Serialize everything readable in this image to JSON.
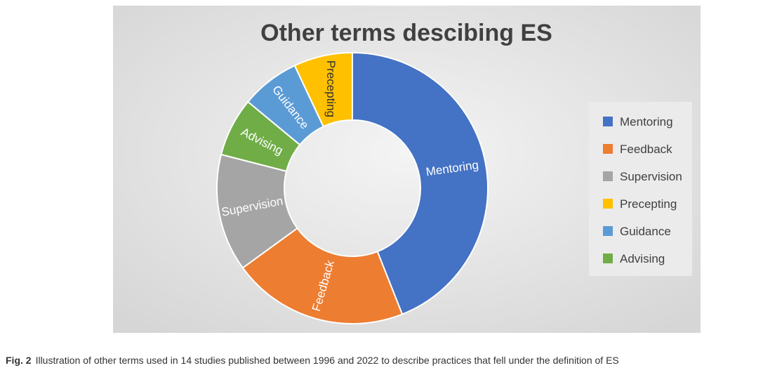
{
  "figure": {
    "caption_label": "Fig. 2",
    "caption_text": "Illustration of other terms used in 14 studies published between 1996 and 2022 to describe practices that fell under the definition of ES"
  },
  "chart_data": {
    "type": "pie",
    "variant": "donut",
    "title": "Other  terms descibing ES",
    "categories": [
      "Mentoring",
      "Feedback",
      "Supervision",
      "Precepting",
      "Guidance",
      "Advising"
    ],
    "values": [
      44,
      21,
      14,
      7,
      7,
      7
    ],
    "colors": [
      "#4472C4",
      "#ED7D31",
      "#A5A5A5",
      "#FFC000",
      "#5B9BD5",
      "#70AD47"
    ],
    "drawing_order": [
      "Mentoring",
      "Feedback",
      "Supervision",
      "Advising",
      "Guidance",
      "Precepting"
    ],
    "legend_position": "right",
    "background": "#E0E0E0",
    "legend_background": "#EBEBEB"
  }
}
